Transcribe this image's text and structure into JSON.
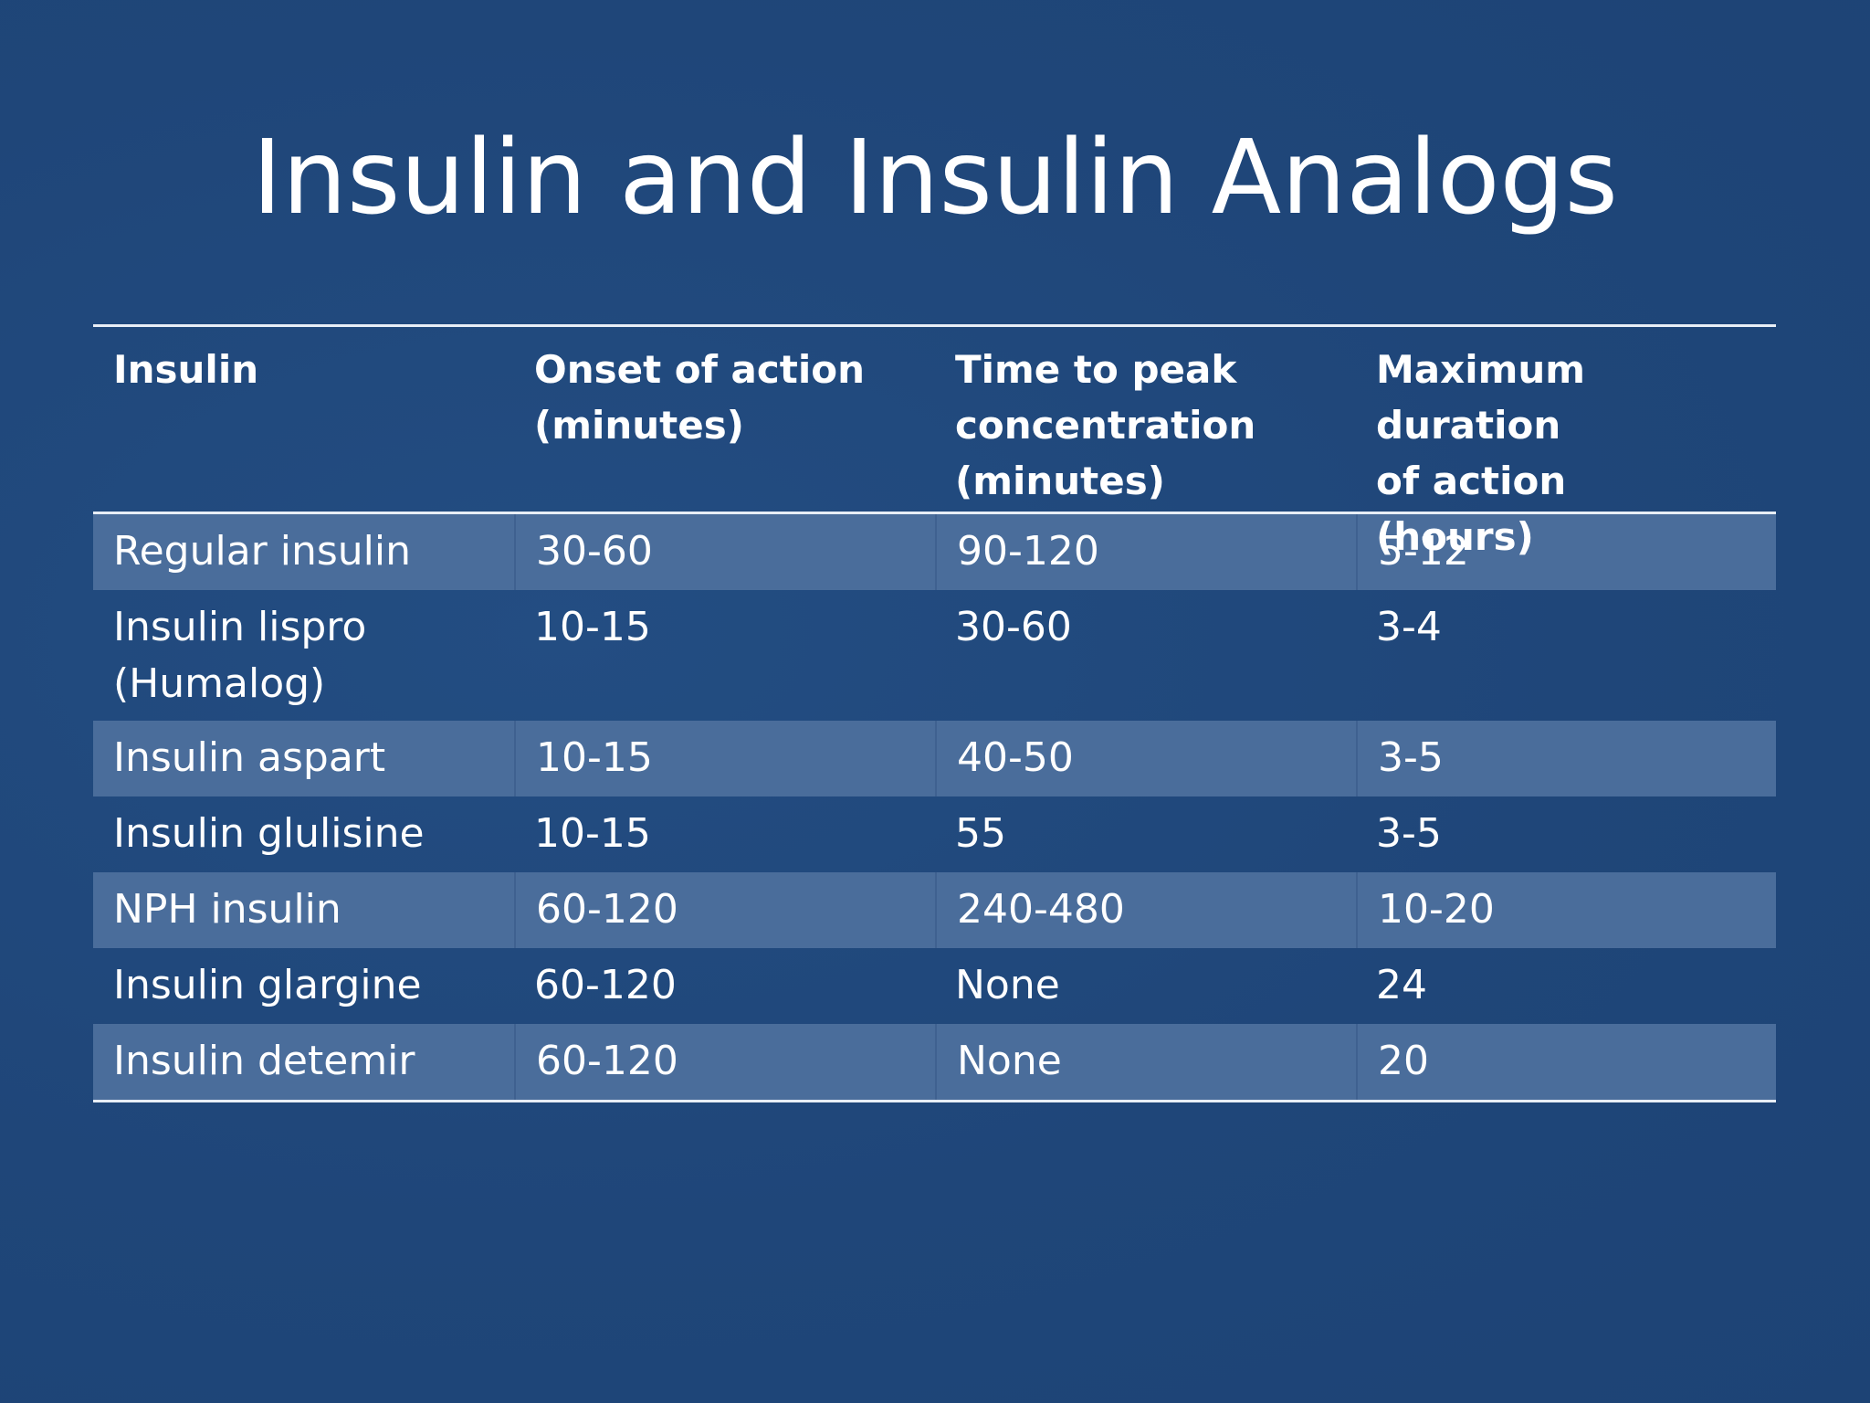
{
  "slide": {
    "title": "Insulin and Insulin Analogs"
  },
  "table": {
    "headers": [
      "Insulin",
      "Onset of action\n(minutes)",
      "Time to peak\nconcentration\n(minutes)",
      "Maximum duration\nof action\n(hours)"
    ],
    "rows": [
      [
        "Regular insulin",
        "30-60",
        "90-120",
        "5-12"
      ],
      [
        "Insulin lispro\n(Humalog)",
        "10-15",
        "30-60",
        "3-4"
      ],
      [
        "Insulin aspart",
        "10-15",
        "40-50",
        "3-5"
      ],
      [
        "Insulin glulisine",
        "10-15",
        "55",
        "3-5"
      ],
      [
        "NPH insulin",
        "60-120",
        "240-480",
        "10-20"
      ],
      [
        "Insulin glargine",
        "60-120",
        "None",
        "24"
      ],
      [
        "Insulin detemir",
        "60-120",
        "None",
        "20"
      ]
    ]
  },
  "colors": {
    "background": "#1f4679",
    "shaded_row": "#4a6d9b",
    "rule": "#e8eef6",
    "text": "#ffffff"
  }
}
